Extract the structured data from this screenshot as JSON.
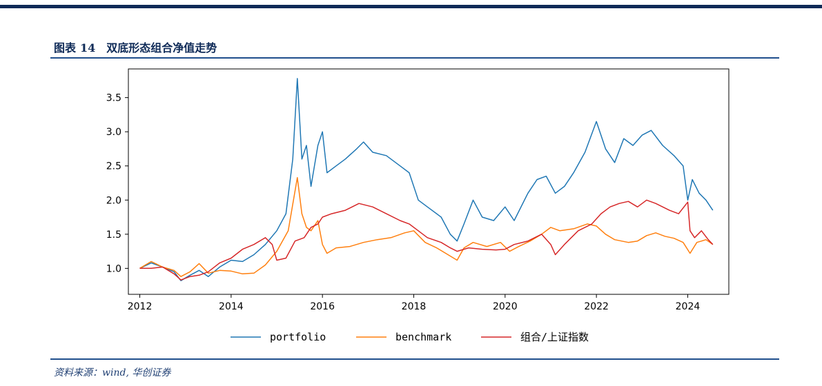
{
  "figure": {
    "title_prefix": "图表",
    "title_number": "14",
    "title_text": "双底形态组合净值走势",
    "source": "资料来源：wind, 华创证券"
  },
  "colors": {
    "portfolio": "#1f77b4",
    "benchmark": "#ff7f0e",
    "index": "#d62728",
    "brand": "#0e2a57"
  },
  "chart_data": {
    "type": "line",
    "title": "",
    "xlabel": "",
    "ylabel": "",
    "xlim": [
      2011.75,
      2024.9
    ],
    "ylim": [
      0.62,
      3.92
    ],
    "xticks": [
      2012,
      2014,
      2016,
      2018,
      2020,
      2022,
      2024
    ],
    "xtick_labels": [
      "2012",
      "2014",
      "2016",
      "2018",
      "2020",
      "2022",
      "2024"
    ],
    "yticks": [
      1.0,
      1.5,
      2.0,
      2.5,
      3.0,
      3.5
    ],
    "ytick_labels": [
      "1.0",
      "1.5",
      "2.0",
      "2.5",
      "3.0",
      "3.5"
    ],
    "grid": false,
    "legend_position": "bottom-center",
    "series": [
      {
        "name": "portfolio",
        "points": [
          [
            2012.0,
            1.0
          ],
          [
            2012.25,
            1.08
          ],
          [
            2012.5,
            1.02
          ],
          [
            2012.75,
            0.95
          ],
          [
            2012.9,
            0.82
          ],
          [
            2013.1,
            0.9
          ],
          [
            2013.3,
            0.97
          ],
          [
            2013.5,
            0.88
          ],
          [
            2013.75,
            1.02
          ],
          [
            2014.0,
            1.12
          ],
          [
            2014.25,
            1.1
          ],
          [
            2014.5,
            1.2
          ],
          [
            2014.75,
            1.35
          ],
          [
            2015.0,
            1.55
          ],
          [
            2015.2,
            1.8
          ],
          [
            2015.35,
            2.6
          ],
          [
            2015.45,
            3.78
          ],
          [
            2015.55,
            2.6
          ],
          [
            2015.65,
            2.8
          ],
          [
            2015.75,
            2.2
          ],
          [
            2015.9,
            2.8
          ],
          [
            2016.0,
            3.0
          ],
          [
            2016.1,
            2.4
          ],
          [
            2016.3,
            2.5
          ],
          [
            2016.5,
            2.6
          ],
          [
            2016.75,
            2.75
          ],
          [
            2016.9,
            2.85
          ],
          [
            2017.1,
            2.7
          ],
          [
            2017.4,
            2.65
          ],
          [
            2017.7,
            2.5
          ],
          [
            2017.9,
            2.4
          ],
          [
            2018.1,
            2.0
          ],
          [
            2018.3,
            1.9
          ],
          [
            2018.6,
            1.75
          ],
          [
            2018.8,
            1.5
          ],
          [
            2018.95,
            1.4
          ],
          [
            2019.1,
            1.65
          ],
          [
            2019.3,
            2.0
          ],
          [
            2019.5,
            1.75
          ],
          [
            2019.75,
            1.7
          ],
          [
            2020.0,
            1.9
          ],
          [
            2020.2,
            1.7
          ],
          [
            2020.5,
            2.1
          ],
          [
            2020.7,
            2.3
          ],
          [
            2020.9,
            2.35
          ],
          [
            2021.1,
            2.1
          ],
          [
            2021.3,
            2.2
          ],
          [
            2021.5,
            2.4
          ],
          [
            2021.75,
            2.7
          ],
          [
            2022.0,
            3.15
          ],
          [
            2022.2,
            2.75
          ],
          [
            2022.4,
            2.55
          ],
          [
            2022.6,
            2.9
          ],
          [
            2022.8,
            2.8
          ],
          [
            2023.0,
            2.95
          ],
          [
            2023.2,
            3.02
          ],
          [
            2023.45,
            2.8
          ],
          [
            2023.7,
            2.65
          ],
          [
            2023.9,
            2.5
          ],
          [
            2024.0,
            2.0
          ],
          [
            2024.1,
            2.3
          ],
          [
            2024.25,
            2.1
          ],
          [
            2024.4,
            2.0
          ],
          [
            2024.55,
            1.85
          ]
        ]
      },
      {
        "name": "benchmark",
        "points": [
          [
            2012.0,
            1.0
          ],
          [
            2012.25,
            1.1
          ],
          [
            2012.5,
            1.02
          ],
          [
            2012.75,
            0.97
          ],
          [
            2012.9,
            0.88
          ],
          [
            2013.1,
            0.95
          ],
          [
            2013.3,
            1.07
          ],
          [
            2013.5,
            0.93
          ],
          [
            2013.75,
            0.97
          ],
          [
            2014.0,
            0.96
          ],
          [
            2014.25,
            0.92
          ],
          [
            2014.5,
            0.93
          ],
          [
            2014.75,
            1.05
          ],
          [
            2015.0,
            1.25
          ],
          [
            2015.25,
            1.55
          ],
          [
            2015.45,
            2.33
          ],
          [
            2015.55,
            1.8
          ],
          [
            2015.65,
            1.6
          ],
          [
            2015.75,
            1.55
          ],
          [
            2015.9,
            1.7
          ],
          [
            2016.0,
            1.35
          ],
          [
            2016.1,
            1.22
          ],
          [
            2016.3,
            1.3
          ],
          [
            2016.6,
            1.32
          ],
          [
            2016.9,
            1.38
          ],
          [
            2017.2,
            1.42
          ],
          [
            2017.5,
            1.45
          ],
          [
            2017.8,
            1.52
          ],
          [
            2018.0,
            1.55
          ],
          [
            2018.25,
            1.38
          ],
          [
            2018.5,
            1.3
          ],
          [
            2018.75,
            1.2
          ],
          [
            2018.95,
            1.12
          ],
          [
            2019.1,
            1.3
          ],
          [
            2019.3,
            1.38
          ],
          [
            2019.6,
            1.32
          ],
          [
            2019.9,
            1.38
          ],
          [
            2020.1,
            1.25
          ],
          [
            2020.3,
            1.32
          ],
          [
            2020.55,
            1.4
          ],
          [
            2020.8,
            1.5
          ],
          [
            2021.0,
            1.6
          ],
          [
            2021.2,
            1.55
          ],
          [
            2021.5,
            1.58
          ],
          [
            2021.8,
            1.65
          ],
          [
            2022.0,
            1.62
          ],
          [
            2022.2,
            1.5
          ],
          [
            2022.4,
            1.42
          ],
          [
            2022.7,
            1.38
          ],
          [
            2022.9,
            1.4
          ],
          [
            2023.1,
            1.48
          ],
          [
            2023.3,
            1.52
          ],
          [
            2023.5,
            1.47
          ],
          [
            2023.7,
            1.44
          ],
          [
            2023.9,
            1.38
          ],
          [
            2024.05,
            1.22
          ],
          [
            2024.2,
            1.38
          ],
          [
            2024.4,
            1.42
          ],
          [
            2024.55,
            1.35
          ]
        ]
      },
      {
        "name": "组合/上证指数",
        "points": [
          [
            2012.0,
            1.0
          ],
          [
            2012.25,
            1.0
          ],
          [
            2012.5,
            1.02
          ],
          [
            2012.75,
            0.92
          ],
          [
            2012.9,
            0.83
          ],
          [
            2013.1,
            0.88
          ],
          [
            2013.3,
            0.9
          ],
          [
            2013.5,
            0.95
          ],
          [
            2013.75,
            1.08
          ],
          [
            2014.0,
            1.15
          ],
          [
            2014.25,
            1.28
          ],
          [
            2014.5,
            1.35
          ],
          [
            2014.75,
            1.45
          ],
          [
            2014.9,
            1.35
          ],
          [
            2015.0,
            1.12
          ],
          [
            2015.2,
            1.15
          ],
          [
            2015.4,
            1.4
          ],
          [
            2015.6,
            1.45
          ],
          [
            2015.75,
            1.6
          ],
          [
            2015.9,
            1.65
          ],
          [
            2016.0,
            1.75
          ],
          [
            2016.2,
            1.8
          ],
          [
            2016.5,
            1.85
          ],
          [
            2016.8,
            1.95
          ],
          [
            2017.1,
            1.9
          ],
          [
            2017.4,
            1.8
          ],
          [
            2017.7,
            1.7
          ],
          [
            2017.9,
            1.65
          ],
          [
            2018.1,
            1.55
          ],
          [
            2018.3,
            1.45
          ],
          [
            2018.6,
            1.38
          ],
          [
            2018.8,
            1.3
          ],
          [
            2018.95,
            1.25
          ],
          [
            2019.2,
            1.3
          ],
          [
            2019.5,
            1.28
          ],
          [
            2019.8,
            1.27
          ],
          [
            2020.0,
            1.28
          ],
          [
            2020.2,
            1.35
          ],
          [
            2020.5,
            1.4
          ],
          [
            2020.8,
            1.5
          ],
          [
            2021.0,
            1.35
          ],
          [
            2021.1,
            1.2
          ],
          [
            2021.3,
            1.35
          ],
          [
            2021.6,
            1.55
          ],
          [
            2021.9,
            1.65
          ],
          [
            2022.1,
            1.8
          ],
          [
            2022.3,
            1.9
          ],
          [
            2022.5,
            1.95
          ],
          [
            2022.7,
            1.98
          ],
          [
            2022.9,
            1.9
          ],
          [
            2023.1,
            2.0
          ],
          [
            2023.3,
            1.95
          ],
          [
            2023.6,
            1.85
          ],
          [
            2023.8,
            1.8
          ],
          [
            2024.0,
            1.97
          ],
          [
            2024.05,
            1.55
          ],
          [
            2024.15,
            1.45
          ],
          [
            2024.3,
            1.55
          ],
          [
            2024.45,
            1.42
          ],
          [
            2024.55,
            1.35
          ]
        ]
      }
    ]
  }
}
